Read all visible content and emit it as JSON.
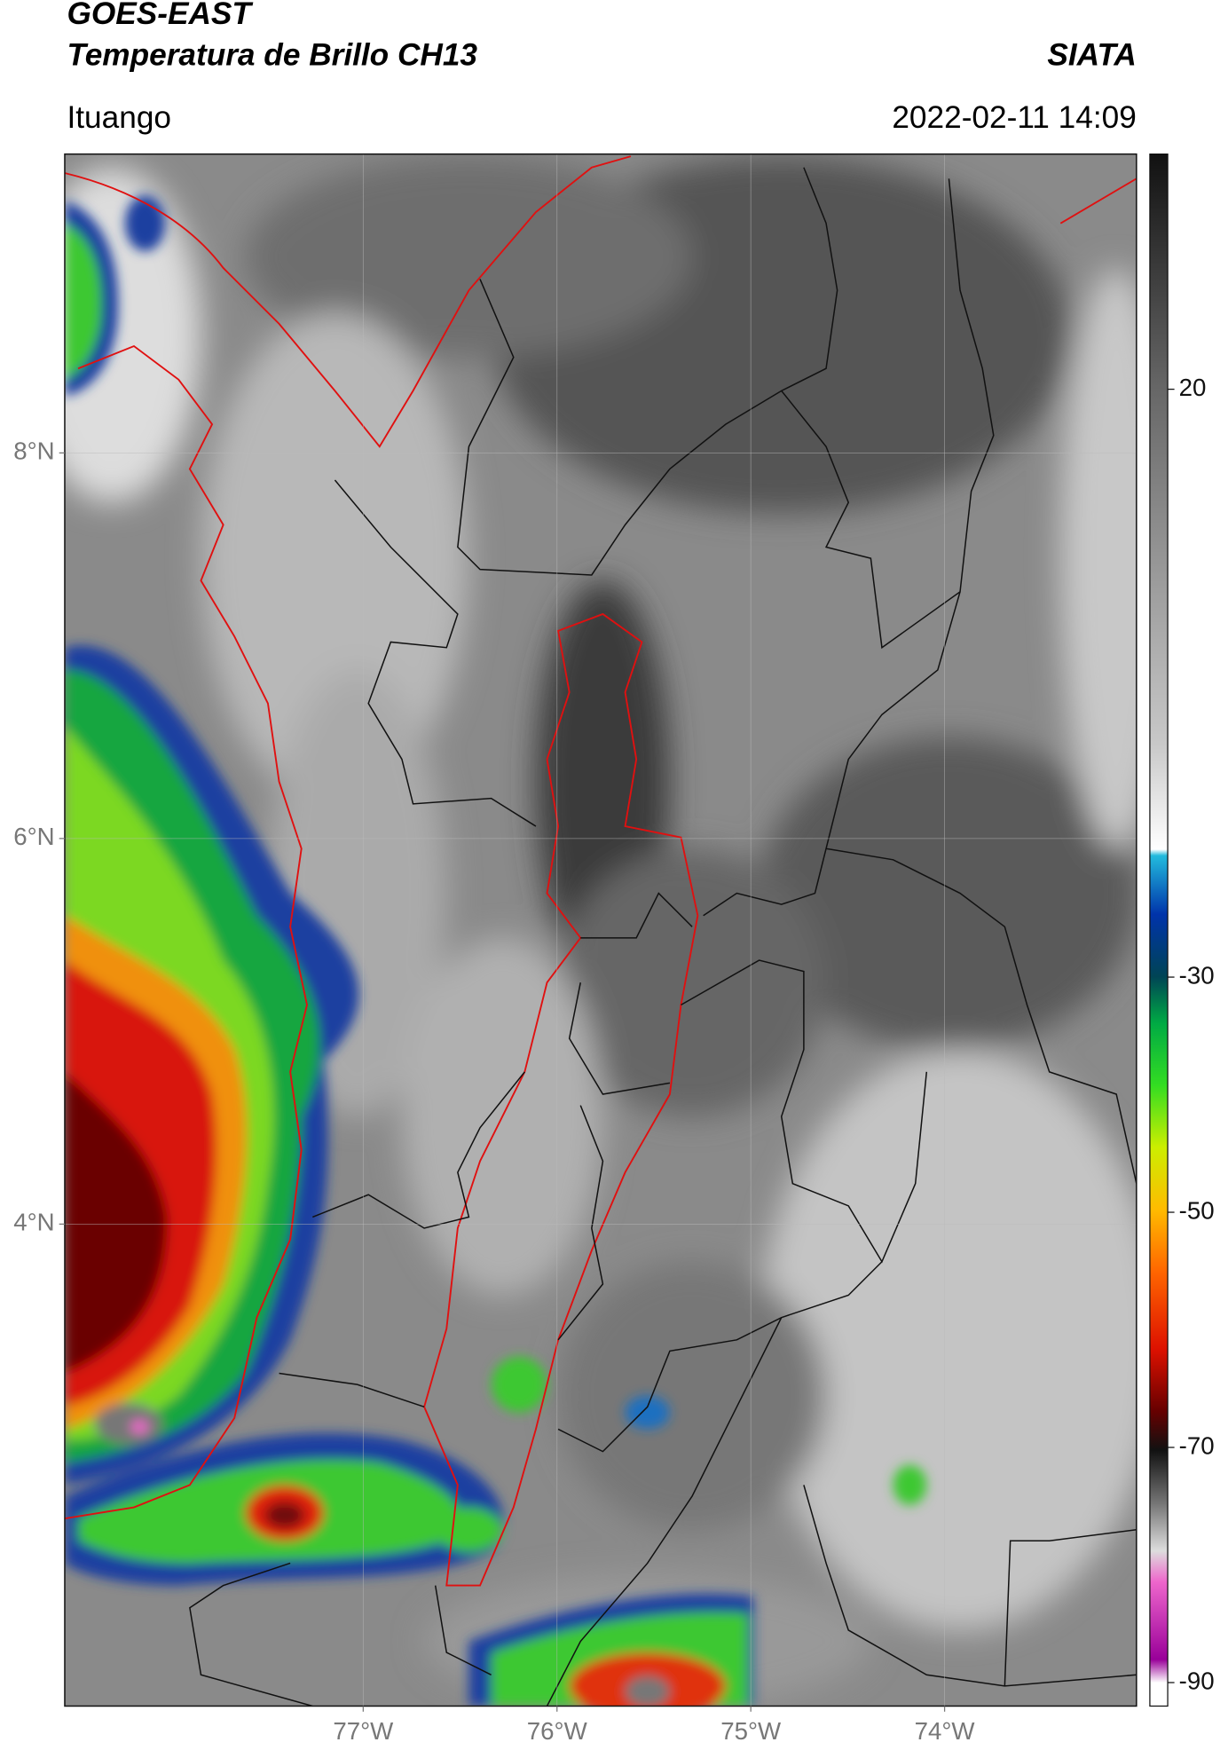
{
  "chart_data": {
    "type": "map",
    "title": "GOES-EAST",
    "subtitle": "Temperatura de Brillo CH13",
    "source": "SIATA",
    "location": "Ituango",
    "datetime": "2022-02-11 14:09",
    "xlim": [
      -78.54,
      -73.01
    ],
    "ylim": [
      1.5,
      9.55
    ],
    "xticks": [
      {
        "value": -77,
        "label": "77°W"
      },
      {
        "value": -76,
        "label": "76°W"
      },
      {
        "value": -75,
        "label": "75°W"
      },
      {
        "value": -74,
        "label": "74°W"
      }
    ],
    "yticks": [
      {
        "value": 8,
        "label": "8°N"
      },
      {
        "value": 6,
        "label": "6°N"
      },
      {
        "value": 4,
        "label": "4°N"
      }
    ],
    "grid": true,
    "colorbar": {
      "lim": [
        -92,
        40
      ],
      "ticks": [
        20,
        -30,
        -50,
        -70,
        -90
      ]
    }
  }
}
